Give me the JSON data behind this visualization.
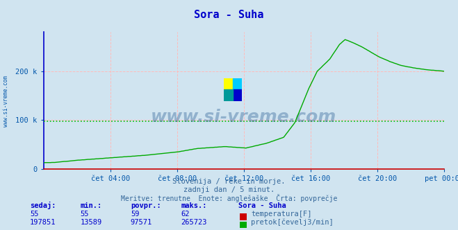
{
  "title": "Sora - Suha",
  "title_color": "#0000cc",
  "bg_color": "#d0e4f0",
  "plot_bg_color": "#d0e4f0",
  "grid_color_h": "#ffbbbb",
  "grid_color_v": "#ffbbbb",
  "axis_color_left": "#0000cc",
  "axis_color_bottom": "#cc0000",
  "axis_arrow_color": "#cc0000",
  "tick_color": "#0055aa",
  "watermark": "www.si-vreme.com",
  "watermark_color": "#336699",
  "side_label_color": "#0055aa",
  "subtitle1": "Slovenija / reke in morje.",
  "subtitle2": "zadnji dan / 5 minut.",
  "subtitle3": "Meritve: trenutne  Enote: anglešaške  Črta: povprečje",
  "subtitle_color": "#336699",
  "avg_line_value": 97571,
  "avg_line_color": "#00bb00",
  "temp_color": "#cc0000",
  "flow_color": "#00aa00",
  "temp_sedaj": 55,
  "temp_min": 55,
  "temp_povpr": 59,
  "temp_maks": 62,
  "flow_sedaj": 197851,
  "flow_min": 13589,
  "flow_povpr": 97571,
  "flow_maks": 265723,
  "ylim_min": 0,
  "ylim_max": 280000,
  "ytick_values": [
    0,
    100000,
    200000
  ],
  "ytick_labels": [
    "0",
    "100 k",
    "200 k"
  ],
  "x_tick_hours": [
    4,
    8,
    12,
    16,
    20,
    24
  ],
  "x_tick_labels": [
    "čet 04:00",
    "čet 08:00",
    "čet 12:00",
    "čet 16:00",
    "čet 20:00",
    "pet 00:00"
  ],
  "logo_colors": [
    "#ffff00",
    "#00ccff",
    "#0000cc",
    "#006699"
  ]
}
